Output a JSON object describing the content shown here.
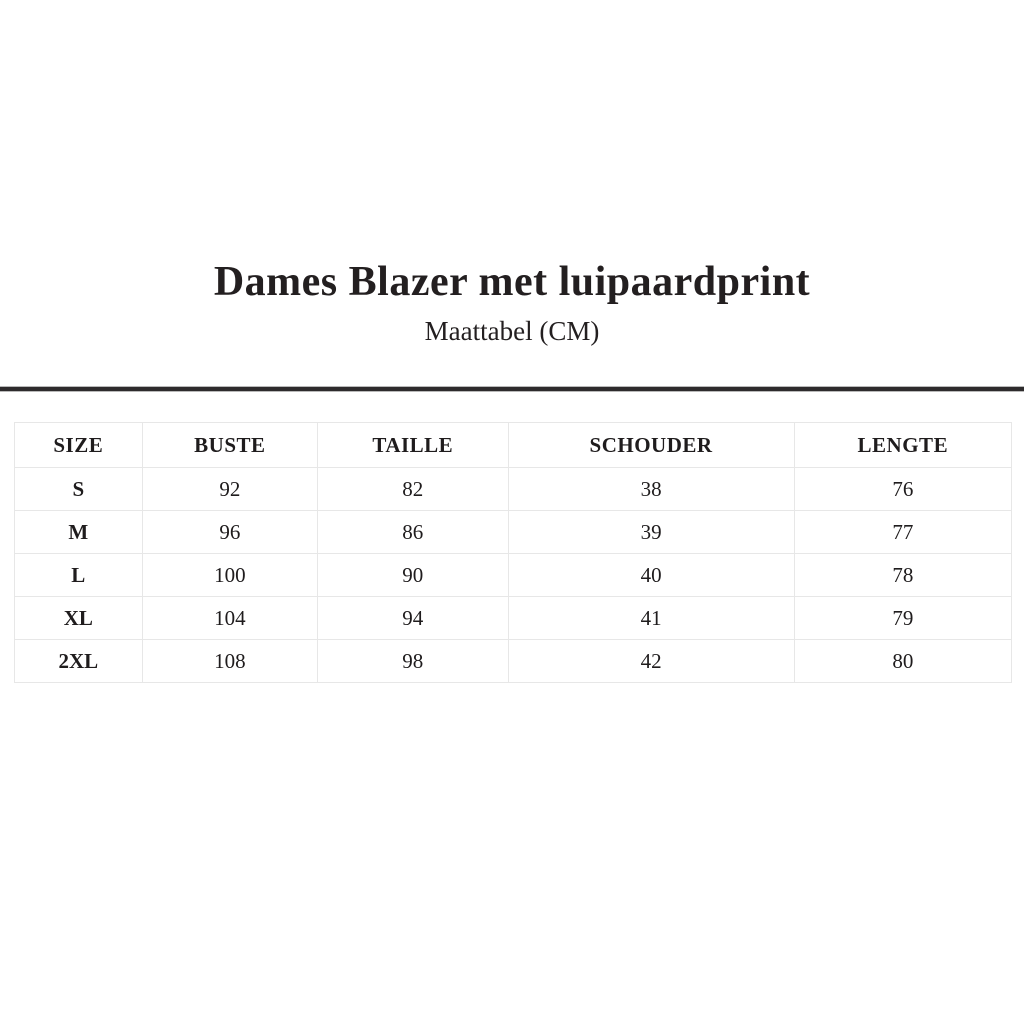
{
  "header": {
    "title": "Dames Blazer met luipaardprint",
    "subtitle": "Maattabel (CM)"
  },
  "table": {
    "columns": [
      "SIZE",
      "BUSTE",
      "TAILLE",
      "SCHOUDER",
      "LENGTE"
    ],
    "rows": [
      [
        "S",
        "92",
        "82",
        "38",
        "76"
      ],
      [
        "M",
        "96",
        "86",
        "39",
        "77"
      ],
      [
        "L",
        "100",
        "90",
        "40",
        "78"
      ],
      [
        "XL",
        "104",
        "94",
        "41",
        "79"
      ],
      [
        "2XL",
        "108",
        "98",
        "42",
        "80"
      ]
    ]
  },
  "colors": {
    "background": "#ffffff",
    "text": "#231f20",
    "table_border": "#e7e7e7",
    "divider": "#2e2b2c"
  }
}
